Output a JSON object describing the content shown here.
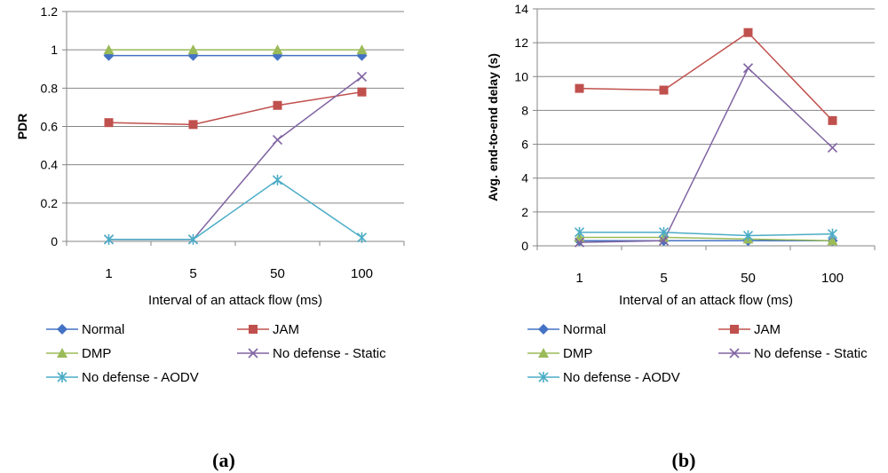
{
  "chart_data": [
    {
      "type": "line",
      "panel_label": "(a)",
      "categories": [
        "1",
        "5",
        "50",
        "100"
      ],
      "xlabel": "Interval of an attack flow (ms)",
      "ylabel": "PDR",
      "ylim": [
        0,
        1.2
      ],
      "yticks": [
        "0",
        "0.2",
        "0.4",
        "0.6",
        "0.8",
        "1",
        "1.2"
      ],
      "ytick_values": [
        0,
        0.2,
        0.4,
        0.6,
        0.8,
        1,
        1.2
      ],
      "grid": true,
      "series": [
        {
          "name": "Normal",
          "color": "#4472C4",
          "marker": "diamond",
          "values": [
            0.97,
            0.97,
            0.97,
            0.97
          ]
        },
        {
          "name": "JAM",
          "color": "#C0504D",
          "marker": "square",
          "values": [
            0.62,
            0.61,
            0.71,
            0.78
          ]
        },
        {
          "name": "DMP",
          "color": "#9BBB59",
          "marker": "triangle",
          "values": [
            1.0,
            1.0,
            1.0,
            1.0
          ]
        },
        {
          "name": "No defense - Static",
          "color": "#8064A2",
          "marker": "x",
          "values": [
            0.01,
            0.01,
            0.53,
            0.86
          ]
        },
        {
          "name": "No defense - AODV",
          "color": "#4BACC6",
          "marker": "star",
          "values": [
            0.01,
            0.01,
            0.32,
            0.02
          ]
        }
      ]
    },
    {
      "type": "line",
      "panel_label": "(b)",
      "categories": [
        "1",
        "5",
        "50",
        "100"
      ],
      "xlabel": "Interval of an attack flow (ms)",
      "ylabel": "Avg. end-to-end delay (s)",
      "ylim": [
        0,
        14
      ],
      "yticks": [
        "0",
        "2",
        "4",
        "6",
        "8",
        "10",
        "12",
        "14"
      ],
      "ytick_values": [
        0,
        2,
        4,
        6,
        8,
        10,
        12,
        14
      ],
      "grid": true,
      "series": [
        {
          "name": "Normal",
          "color": "#4472C4",
          "marker": "diamond",
          "values": [
            0.3,
            0.3,
            0.3,
            0.3
          ]
        },
        {
          "name": "JAM",
          "color": "#C0504D",
          "marker": "square",
          "values": [
            9.3,
            9.2,
            12.6,
            7.4
          ]
        },
        {
          "name": "DMP",
          "color": "#9BBB59",
          "marker": "triangle",
          "values": [
            0.5,
            0.5,
            0.4,
            0.3
          ]
        },
        {
          "name": "No defense - Static",
          "color": "#8064A2",
          "marker": "x",
          "values": [
            0.2,
            0.3,
            10.5,
            5.8
          ]
        },
        {
          "name": "No defense - AODV",
          "color": "#4BACC6",
          "marker": "star",
          "values": [
            0.8,
            0.8,
            0.6,
            0.7
          ]
        }
      ]
    }
  ]
}
